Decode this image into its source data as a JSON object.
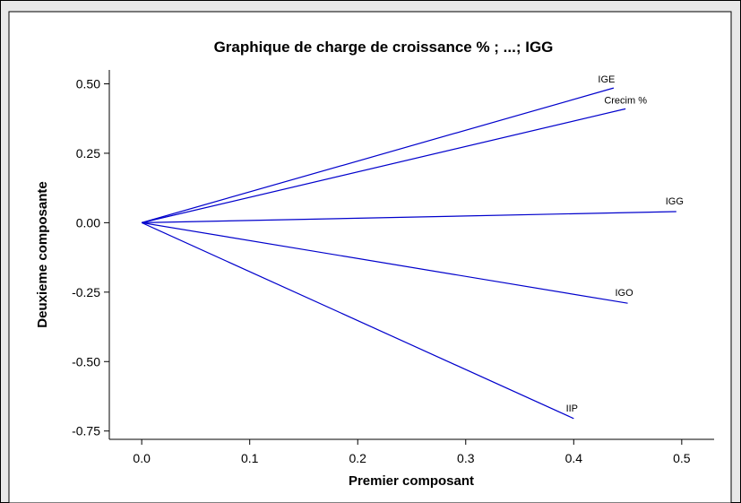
{
  "chart_data": {
    "type": "line",
    "title": "Graphique de charge de croissance % ; ...; IGG",
    "xlabel": "Premier composant",
    "ylabel": "Deuxieme composante",
    "xlim": [
      -0.03,
      0.53
    ],
    "ylim": [
      -0.78,
      0.55
    ],
    "xticks": [
      "0.0",
      "0.1",
      "0.2",
      "0.3",
      "0.4",
      "0.5"
    ],
    "xtick_values": [
      0.0,
      0.1,
      0.2,
      0.3,
      0.4,
      0.5
    ],
    "yticks": [
      "0.50",
      "0.25",
      "0.00",
      "-0.25",
      "-0.50",
      "-0.75"
    ],
    "ytick_values": [
      0.5,
      0.25,
      0.0,
      -0.25,
      -0.5,
      -0.75
    ],
    "grid": false,
    "origin": [
      0.0,
      0.0
    ],
    "color": "#0000cc",
    "series": [
      {
        "name": "IGE",
        "x": 0.437,
        "y": 0.485
      },
      {
        "name": "Crecim %",
        "x": 0.448,
        "y": 0.41
      },
      {
        "name": "IGG",
        "x": 0.495,
        "y": 0.04
      },
      {
        "name": "IGO",
        "x": 0.45,
        "y": -0.29
      },
      {
        "name": "IIP",
        "x": 0.4,
        "y": -0.705
      }
    ]
  }
}
